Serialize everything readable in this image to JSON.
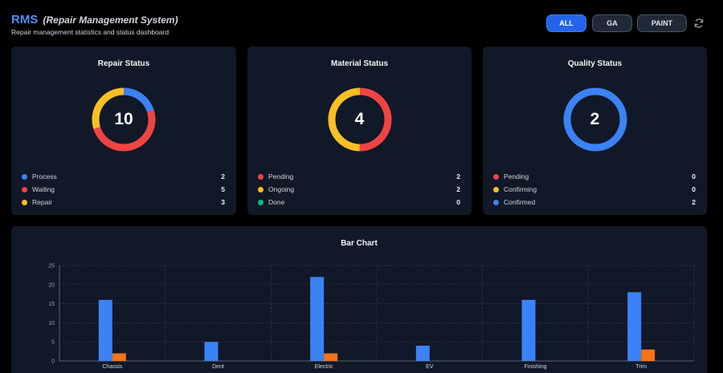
{
  "header": {
    "title": "RMS",
    "title_full": "(Repair Management System)",
    "subtitle": "Repair management statistics and status dashboard",
    "filters": [
      {
        "label": "ALL",
        "active": true
      },
      {
        "label": "GA",
        "active": false
      },
      {
        "label": "PAINT",
        "active": false
      }
    ],
    "refresh_icon": "refresh-icon"
  },
  "colors": {
    "blue": "#3b82f6",
    "red": "#ef4444",
    "yellow": "#fbbf24",
    "green": "#10b981",
    "orange": "#f97316",
    "card_bg": "#111827"
  },
  "status_cards": [
    {
      "title": "Repair Status",
      "total": "10",
      "items": [
        {
          "label": "Process",
          "value": "2",
          "color": "#3b82f6"
        },
        {
          "label": "Waiting",
          "value": "5",
          "color": "#ef4444"
        },
        {
          "label": "Repair",
          "value": "3",
          "color": "#fbbf24"
        }
      ]
    },
    {
      "title": "Material Status",
      "total": "4",
      "items": [
        {
          "label": "Pending",
          "value": "2",
          "color": "#ef4444"
        },
        {
          "label": "Ongoing",
          "value": "2",
          "color": "#fbbf24"
        },
        {
          "label": "Done",
          "value": "0",
          "color": "#10b981"
        }
      ]
    },
    {
      "title": "Quality Status",
      "total": "2",
      "items": [
        {
          "label": "Pending",
          "value": "0",
          "color": "#ef4444"
        },
        {
          "label": "Confirming",
          "value": "0",
          "color": "#fbbf24"
        },
        {
          "label": "Confirmed",
          "value": "2",
          "color": "#3b82f6"
        }
      ]
    }
  ],
  "chart_data": {
    "type": "bar",
    "title": "Bar Chart",
    "categories": [
      "Chassis",
      "Dent",
      "Electric",
      "EV",
      "Finishing",
      "Trim"
    ],
    "series": [
      {
        "values": [
          16,
          5,
          22,
          4,
          16,
          18
        ],
        "color": "#3b82f6"
      },
      {
        "values": [
          2,
          0,
          2,
          0,
          0,
          3
        ],
        "color": "#f97316"
      }
    ],
    "ylim": [
      0,
      25
    ],
    "yticks": [
      0,
      5,
      10,
      15,
      20,
      25
    ],
    "grid": true
  }
}
